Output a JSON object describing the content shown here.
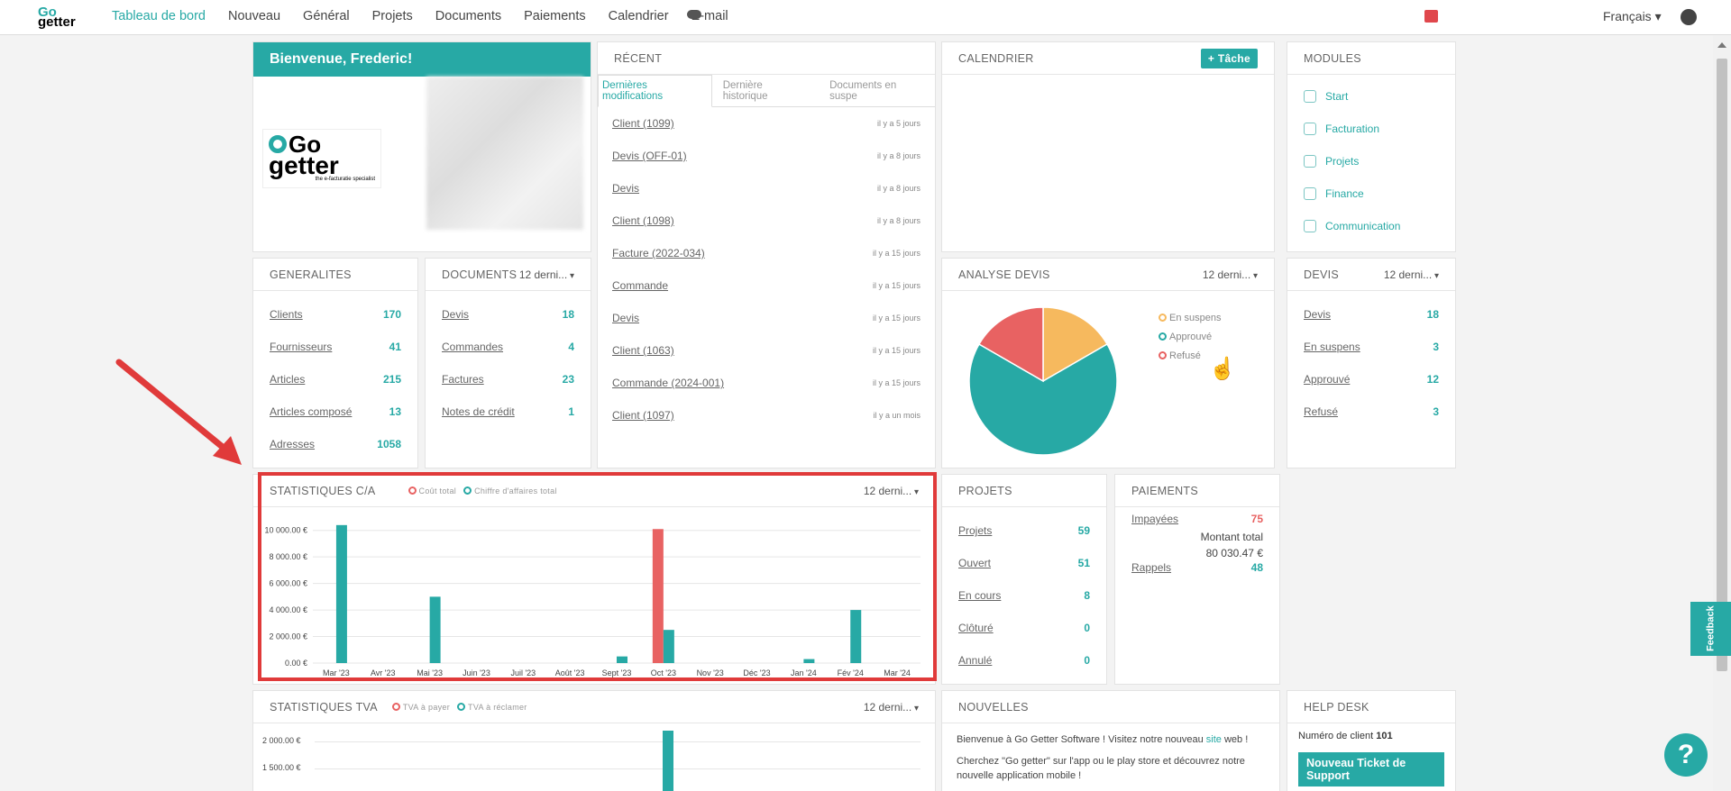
{
  "nav": {
    "logo_top": "Go",
    "logo_bottom": "getter",
    "items": [
      "Tableau de bord",
      "Nouveau",
      "Général",
      "Projets",
      "Documents",
      "Paiements",
      "Calendrier",
      "E-mail"
    ],
    "language": "Français"
  },
  "welcome": {
    "title": "Bienvenue, Frederic!",
    "logo_text_top": "Go",
    "logo_text_bottom": "getter",
    "logo_tagline": "the e-facturatie specialist"
  },
  "recent": {
    "title": "RÉCENT",
    "tabs": [
      "Dernières modifications",
      "Dernière historique",
      "Documents en suspe"
    ],
    "items": [
      {
        "label": "Client (1099)",
        "time": "il y a 5 jours"
      },
      {
        "label": "Devis (OFF-01)",
        "time": "il y a 8 jours"
      },
      {
        "label": "Devis",
        "time": "il y a 8 jours"
      },
      {
        "label": "Client (1098)",
        "time": "il y a 8 jours"
      },
      {
        "label": "Facture (2022-034)",
        "time": "il y a 15 jours"
      },
      {
        "label": "Commande",
        "time": "il y a 15 jours"
      },
      {
        "label": "Devis",
        "time": "il y a 15 jours"
      },
      {
        "label": "Client (1063)",
        "time": "il y a 15 jours"
      },
      {
        "label": "Commande (2024-001)",
        "time": "il y a 15 jours"
      },
      {
        "label": "Client (1097)",
        "time": "il y a un mois"
      }
    ]
  },
  "calendar": {
    "title": "CALENDRIER",
    "task_button": "+ Tâche"
  },
  "modules": {
    "title": "MODULES",
    "items": [
      "Start",
      "Facturation",
      "Projets",
      "Finance",
      "Communication"
    ]
  },
  "generalites": {
    "title": "GENERALITES",
    "items": [
      {
        "label": "Clients",
        "value": "170"
      },
      {
        "label": "Fournisseurs",
        "value": "41"
      },
      {
        "label": "Articles",
        "value": "215"
      },
      {
        "label": "Articles composé",
        "value": "13"
      },
      {
        "label": "Adresses",
        "value": "1058"
      }
    ]
  },
  "documents": {
    "title": "DOCUMENTS",
    "period": "12 derni...",
    "items": [
      {
        "label": "Devis",
        "value": "18"
      },
      {
        "label": "Commandes",
        "value": "4"
      },
      {
        "label": "Factures",
        "value": "23"
      },
      {
        "label": "Notes de crédit",
        "value": "1"
      }
    ]
  },
  "analyse": {
    "title": "ANALYSE DEVIS",
    "period": "12 derni...",
    "legend": [
      "En suspens",
      "Approuvé",
      "Refusé"
    ]
  },
  "devis": {
    "title": "DEVIS",
    "period": "12 derni...",
    "items": [
      {
        "label": "Devis",
        "value": "18"
      },
      {
        "label": "En suspens",
        "value": "3"
      },
      {
        "label": "Approuvé",
        "value": "12"
      },
      {
        "label": "Refusé",
        "value": "3"
      }
    ]
  },
  "stats_ca": {
    "title": "STATISTIQUES C/A",
    "period": "12 derni...",
    "legend": [
      "Coût total",
      "Chiffre d'affaires total"
    ]
  },
  "projets": {
    "title": "PROJETS",
    "items": [
      {
        "label": "Projets",
        "value": "59"
      },
      {
        "label": "Ouvert",
        "value": "51"
      },
      {
        "label": "En cours",
        "value": "8"
      },
      {
        "label": "Clôturé",
        "value": "0"
      },
      {
        "label": "Annulé",
        "value": "0"
      }
    ]
  },
  "paiements": {
    "title": "PAIEMENTS",
    "impayees_label": "Impayées",
    "impayees_value": "75",
    "total_label": "Montant total",
    "total_value": "80 030.47 €",
    "rappels_label": "Rappels",
    "rappels_value": "48"
  },
  "stats_tva": {
    "title": "STATISTIQUES TVA",
    "period": "12 derni...",
    "legend": [
      "TVA à payer",
      "TVA à réclamer"
    ],
    "yticks": [
      "2 000.00 €",
      "1 500.00 €"
    ]
  },
  "nouvelles": {
    "title": "NOUVELLES",
    "line1_pre": "Bienvenue à Go Getter Software ! Visitez notre nouveau ",
    "line1_link": "site",
    "line1_post": " web !",
    "line2": "Cherchez \"Go getter\" sur l'app ou le play store et découvrez notre nouvelle application mobile !"
  },
  "helpdesk": {
    "title": "HELP DESK",
    "client_label": "Numéro de client",
    "client_number": "101",
    "ticket_button": "Nouveau Ticket de Support"
  },
  "feedback": "Feedback",
  "help_icon": "?",
  "colors": {
    "accent": "#27a9a5",
    "red": "#e86262",
    "orange": "#f6b95e"
  },
  "chart_data": [
    {
      "type": "pie",
      "title": "ANALYSE DEVIS",
      "categories": [
        "En suspens",
        "Approuvé",
        "Refusé"
      ],
      "values": [
        3,
        12,
        3
      ],
      "colors": [
        "#f6b95e",
        "#27a9a5",
        "#e86262"
      ],
      "legend": "right"
    },
    {
      "type": "bar",
      "title": "STATISTIQUES C/A",
      "categories": [
        "Mar '23",
        "Avr '23",
        "Mai '23",
        "Juin '23",
        "Juil '23",
        "Août '23",
        "Sept '23",
        "Oct '23",
        "Nov '23",
        "Déc '23",
        "Jan '24",
        "Fév '24",
        "Mar '24"
      ],
      "series": [
        {
          "name": "Coût total",
          "color": "#e86262",
          "values": [
            0,
            0,
            0,
            0,
            0,
            0,
            0,
            10100,
            0,
            0,
            0,
            0,
            0
          ]
        },
        {
          "name": "Chiffre d'affaires total",
          "color": "#27a9a5",
          "values": [
            10400,
            0,
            5000,
            0,
            0,
            0,
            500,
            2500,
            0,
            0,
            300,
            4000,
            0
          ]
        }
      ],
      "yticks": [
        "0.00 €",
        "2 000.00 €",
        "4 000.00 €",
        "6 000.00 €",
        "8 000.00 €",
        "10 000.00 €"
      ],
      "ylim": [
        0,
        11000
      ],
      "grid": true,
      "legend": "top"
    }
  ]
}
